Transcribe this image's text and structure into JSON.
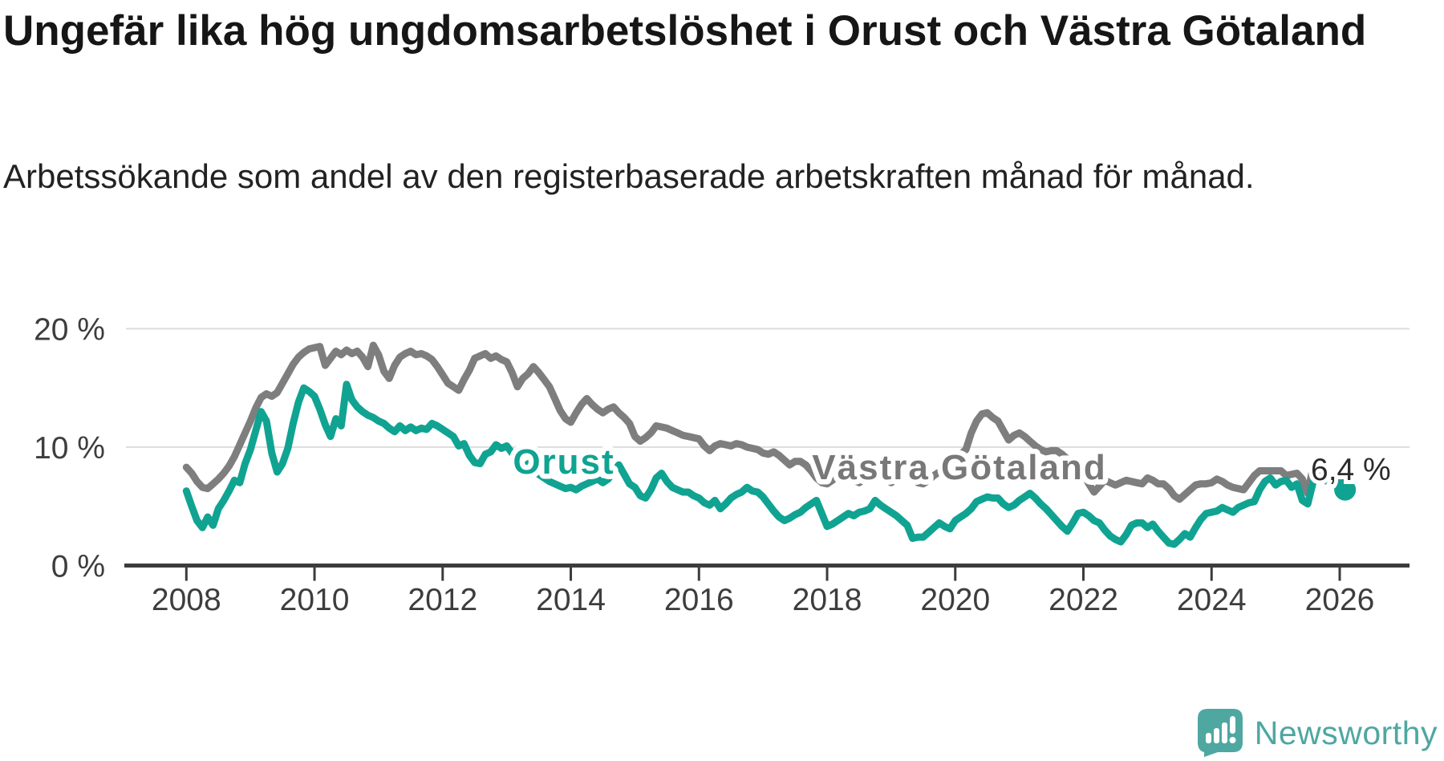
{
  "header": {
    "title": "Ungefär lika hög ungdomsarbetslöshet i Orust och Västra Götaland",
    "subtitle": "Arbetssökande som andel av den registerbaserade arbetskraften månad för månad."
  },
  "colors": {
    "orust_line": "#10a392",
    "vastra_gotaland_line": "#7e7e7e",
    "orust_label": "#10a392",
    "vastra_gotaland_label": "#787878",
    "gridline": "#dedede",
    "axis": "#3c3c3c",
    "axis_text": "#3d3d3d",
    "annotation_text": "#2b2b2b",
    "brand_teal": "#4fa7a1"
  },
  "chart_data": {
    "type": "line",
    "unit": "%",
    "x_frequency": "monthly",
    "x_start": "2008-01",
    "x_end": "2026-02",
    "grid": "horizontal",
    "legend_position": "inline-labels",
    "ylim": [
      0,
      21
    ],
    "y_ticks": [
      {
        "value": 0,
        "label": "0 %"
      },
      {
        "value": 10,
        "label": "10 %"
      },
      {
        "value": 20,
        "label": "20 %"
      }
    ],
    "x_ticks": [
      {
        "year": 2008,
        "label": "2008"
      },
      {
        "year": 2010,
        "label": "2010"
      },
      {
        "year": 2012,
        "label": "2012"
      },
      {
        "year": 2014,
        "label": "2014"
      },
      {
        "year": 2016,
        "label": "2016"
      },
      {
        "year": 2018,
        "label": "2018"
      },
      {
        "year": 2020,
        "label": "2020"
      },
      {
        "year": 2022,
        "label": "2022"
      },
      {
        "year": 2024,
        "label": "2024"
      },
      {
        "year": 2026,
        "label": "2026"
      }
    ],
    "annotation": {
      "label": "6,4 %",
      "series": "Orust",
      "value": 6.4
    },
    "series": [
      {
        "name": "Västra Götaland",
        "values": [
          8.3,
          7.8,
          7.1,
          6.6,
          6.5,
          6.9,
          7.3,
          7.8,
          8.4,
          9.2,
          10.2,
          11.2,
          12.2,
          13.3,
          14.2,
          14.5,
          14.3,
          14.6,
          15.4,
          16.2,
          17.0,
          17.6,
          18.0,
          18.3,
          18.4,
          18.5,
          16.9,
          17.5,
          18.1,
          17.8,
          18.2,
          17.9,
          18.1,
          17.6,
          16.8,
          18.6,
          17.8,
          16.4,
          15.8,
          16.9,
          17.6,
          17.9,
          18.1,
          17.8,
          17.9,
          17.7,
          17.4,
          16.8,
          16.1,
          15.4,
          15.1,
          14.8,
          15.7,
          16.5,
          17.5,
          17.7,
          17.9,
          17.5,
          17.7,
          17.4,
          17.2,
          16.3,
          15.1,
          15.8,
          16.2,
          16.8,
          16.3,
          15.7,
          15.1,
          14.1,
          13.1,
          12.4,
          12.1,
          12.9,
          13.6,
          14.1,
          13.6,
          13.2,
          12.9,
          13.2,
          13.4,
          12.9,
          12.5,
          12.0,
          10.9,
          10.5,
          10.8,
          11.2,
          11.8,
          11.7,
          11.6,
          11.4,
          11.2,
          11.0,
          10.9,
          10.8,
          10.7,
          10.1,
          9.7,
          10.1,
          10.3,
          10.2,
          10.1,
          10.3,
          10.2,
          10.0,
          9.9,
          9.8,
          9.5,
          9.4,
          9.6,
          9.3,
          8.9,
          8.5,
          8.8,
          8.8,
          8.5,
          8.0,
          7.4,
          7.0,
          6.9,
          7.2,
          7.6,
          7.8,
          7.5,
          7.2,
          7.0,
          7.3,
          7.6,
          7.8,
          7.6,
          7.3,
          7.0,
          7.3,
          7.5,
          7.7,
          7.4,
          7.0,
          6.9,
          7.2,
          7.6,
          7.9,
          8.2,
          8.6,
          9.0,
          9.4,
          9.8,
          11.2,
          12.2,
          12.8,
          12.9,
          12.5,
          12.2,
          11.4,
          10.6,
          11.0,
          11.2,
          10.9,
          10.5,
          10.1,
          9.8,
          9.6,
          9.7,
          9.7,
          9.4,
          9.0,
          8.6,
          8.2,
          7.8,
          6.9,
          6.2,
          6.7,
          7.2,
          7.0,
          6.8,
          7.0,
          7.2,
          7.1,
          7.0,
          6.9,
          7.4,
          7.2,
          6.9,
          6.9,
          6.5,
          5.9,
          5.6,
          6.0,
          6.4,
          6.8,
          6.9,
          6.9,
          7.0,
          7.3,
          7.1,
          6.8,
          6.6,
          6.5,
          6.4,
          7.0,
          7.6,
          8.0,
          8.0,
          8.0,
          8.0,
          8.0,
          7.6,
          7.7,
          7.8,
          7.3,
          6.1,
          8.3,
          8.0,
          7.3,
          7.0,
          7.0,
          7.0,
          7.0
        ]
      },
      {
        "name": "Orust",
        "values": [
          6.3,
          5.0,
          3.8,
          3.2,
          4.1,
          3.4,
          4.8,
          5.5,
          6.3,
          7.2,
          7.0,
          8.6,
          9.8,
          11.4,
          13.0,
          12.2,
          9.5,
          7.9,
          8.6,
          9.9,
          12.0,
          13.8,
          15.0,
          14.7,
          14.3,
          13.2,
          11.9,
          10.9,
          12.4,
          11.8,
          15.3,
          14.0,
          13.4,
          13.0,
          12.7,
          12.5,
          12.2,
          12.0,
          11.6,
          11.3,
          11.8,
          11.4,
          11.7,
          11.4,
          11.6,
          11.5,
          12.0,
          11.8,
          11.5,
          11.2,
          10.9,
          10.1,
          10.3,
          9.3,
          8.7,
          8.6,
          9.4,
          9.6,
          10.2,
          9.9,
          10.1,
          9.5,
          9.1,
          7.9,
          8.6,
          8.1,
          7.7,
          7.4,
          7.1,
          6.9,
          6.7,
          6.5,
          6.6,
          6.4,
          6.7,
          6.9,
          7.1,
          7.3,
          7.0,
          7.3,
          7.9,
          8.5,
          7.7,
          6.9,
          6.6,
          5.9,
          5.7,
          6.4,
          7.4,
          7.8,
          7.1,
          6.6,
          6.4,
          6.2,
          6.2,
          5.9,
          5.7,
          5.3,
          5.1,
          5.5,
          4.8,
          5.2,
          5.7,
          6.0,
          6.2,
          6.6,
          6.3,
          6.2,
          5.8,
          5.2,
          4.6,
          4.1,
          3.8,
          4.0,
          4.3,
          4.5,
          4.9,
          5.2,
          5.5,
          4.4,
          3.3,
          3.5,
          3.8,
          4.1,
          4.4,
          4.2,
          4.5,
          4.6,
          4.8,
          5.5,
          5.1,
          4.8,
          4.5,
          4.2,
          3.8,
          3.4,
          2.3,
          2.4,
          2.4,
          2.8,
          3.2,
          3.6,
          3.3,
          3.1,
          3.8,
          4.1,
          4.4,
          4.8,
          5.4,
          5.6,
          5.8,
          5.7,
          5.7,
          5.2,
          4.9,
          5.1,
          5.5,
          5.8,
          6.1,
          5.7,
          5.2,
          4.8,
          4.3,
          3.8,
          3.3,
          2.9,
          3.6,
          4.4,
          4.5,
          4.2,
          3.8,
          3.6,
          3.0,
          2.5,
          2.2,
          2.0,
          2.6,
          3.4,
          3.6,
          3.6,
          3.2,
          3.5,
          2.9,
          2.4,
          1.9,
          1.8,
          2.2,
          2.7,
          2.4,
          3.2,
          3.9,
          4.4,
          4.5,
          4.6,
          4.9,
          4.7,
          4.5,
          4.9,
          5.1,
          5.3,
          5.4,
          6.4,
          7.1,
          7.4,
          6.8,
          7.1,
          7.2,
          6.6,
          6.9,
          5.5,
          5.2,
          7.0,
          7.6,
          7.3,
          7.1,
          6.9,
          6.6,
          6.4
        ]
      }
    ]
  },
  "footer": {
    "brand": "Newsworthy",
    "logo_icon": "speech-bubble-bar-chart-exclamation"
  }
}
